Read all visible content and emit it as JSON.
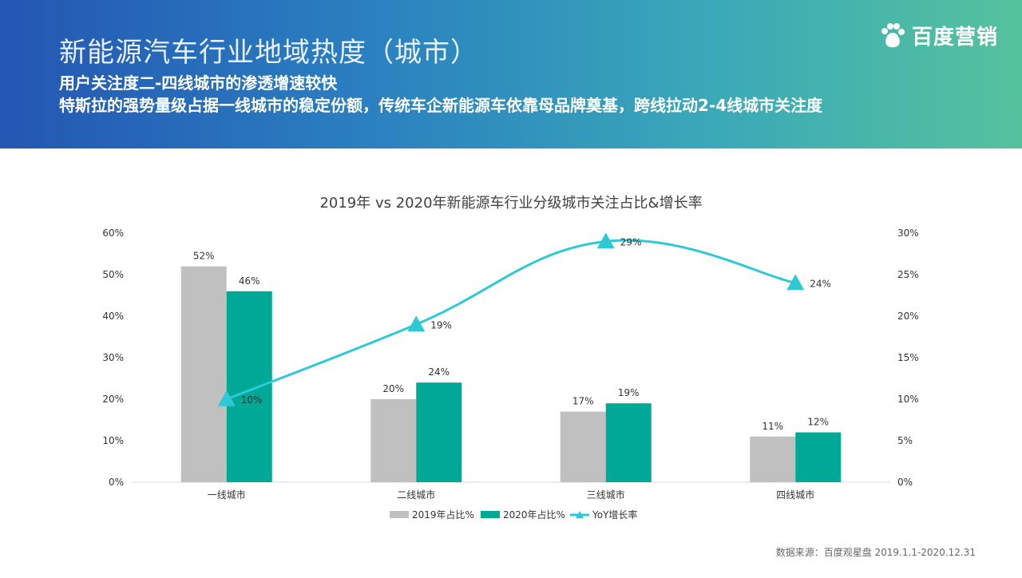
{
  "header": {
    "title": "新能源汽车行业地域热度（城市）",
    "subtitle1": "用户关注度二-四线城市的渗透增速较快",
    "subtitle2": "特斯拉的强势量级占据一线城市的稳定份额，传统车企新能源车依靠母品牌奠基，跨线拉动2-4线城市关注度"
  },
  "brand": {
    "logo_text": "百度营销",
    "logo_icon": "baidu-paw-icon"
  },
  "source": "数据来源：百度观星盘 2019.1.1-2020.12.31",
  "colors": {
    "series_2019": "#c0c0c0",
    "series_2020": "#00a896",
    "yoy_line": "#2ec9d4",
    "header_start": "#2456b3",
    "header_end": "#56c29d"
  },
  "chart_data": {
    "type": "bar",
    "title": "2019年 vs 2020年新能源车行业分级城市关注占比&增长率",
    "categories": [
      "一线城市",
      "二线城市",
      "三线城市",
      "四线城市"
    ],
    "series": [
      {
        "name": "2019年占比%",
        "type": "bar",
        "axis": "left",
        "values": [
          52,
          20,
          17,
          11
        ],
        "labels": [
          "52%",
          "20%",
          "17%",
          "11%"
        ]
      },
      {
        "name": "2020年占比%",
        "type": "bar",
        "axis": "left",
        "values": [
          46,
          24,
          19,
          12
        ],
        "labels": [
          "46%",
          "24%",
          "19%",
          "12%"
        ]
      },
      {
        "name": "YoY增长率",
        "type": "line",
        "axis": "right",
        "values": [
          10,
          19,
          29,
          24
        ],
        "labels": [
          "10%",
          "19%",
          "29%",
          "24%"
        ]
      }
    ],
    "y_left": {
      "min": 0,
      "max": 60,
      "ticks": [
        "0%",
        "10%",
        "20%",
        "30%",
        "40%",
        "50%",
        "60%"
      ]
    },
    "y_right": {
      "min": 0,
      "max": 30,
      "ticks": [
        "0%",
        "5%",
        "10%",
        "15%",
        "20%",
        "25%",
        "30%"
      ]
    },
    "grid": false,
    "legend_position": "bottom"
  }
}
